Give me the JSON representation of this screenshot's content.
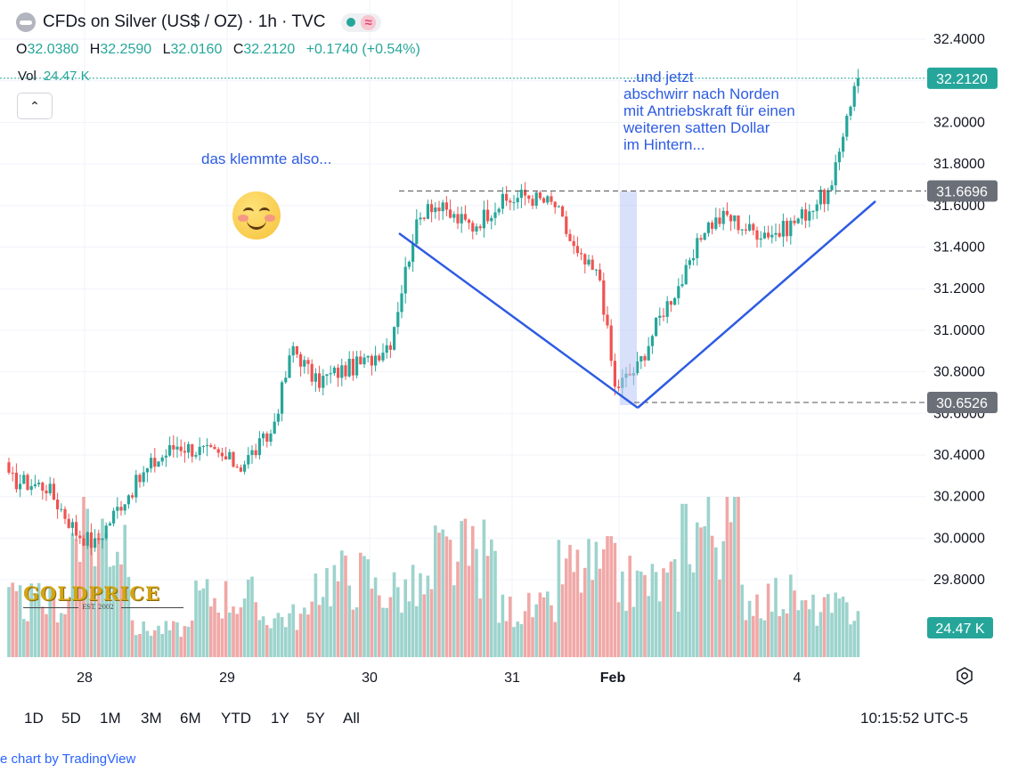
{
  "header": {
    "title": "CFDs on Silver (US$ / OZ) · 1h · TVC",
    "status_icon": "live-dot-icon",
    "indicator_icon": "wave-icon"
  },
  "ohlc": {
    "o_label": "O",
    "o": "32.0380",
    "h_label": "H",
    "h": "32.2590",
    "l_label": "L",
    "l": "32.0160",
    "c_label": "C",
    "c": "32.2120",
    "change": "+0.1740 (+0.54%)"
  },
  "volume": {
    "label": "Vol",
    "value": "24.47 K"
  },
  "collapse_glyph": "⌃",
  "annotations": {
    "left_text": "das klemmte also...",
    "right_lines": [
      "...und jetzt",
      "abschwirr nach Norden",
      "mit Antriebskraft für einen",
      "weiteren satten Dollar",
      "im Hintern..."
    ]
  },
  "watermark": {
    "brand": "GOLDPRICE",
    "est": "EST. 2002"
  },
  "timeframes": [
    "1D",
    "5D",
    "1M",
    "3M",
    "6M",
    "YTD",
    "1Y",
    "5Y",
    "All"
  ],
  "clock": "10:15:52 UTC-5",
  "footer": "e chart by TradingView",
  "colors": {
    "up": "#26a69a",
    "down": "#ef5350",
    "vol_up": "#9dd3cd",
    "vol_down": "#f0a8a6",
    "annotation": "#2d5be3",
    "grid": "#f0f3fa"
  },
  "chart_data": {
    "type": "candlestick",
    "title": "CFDs on Silver (US$ / OZ) · 1h · TVC",
    "ylim": [
      29.7,
      32.5
    ],
    "y_ticks": [
      "32.4000",
      "32.2000",
      "32.0000",
      "31.8000",
      "31.6000",
      "31.4000",
      "31.2000",
      "31.0000",
      "30.8000",
      "30.6000",
      "30.4000",
      "30.2000",
      "30.0000",
      "29.8000"
    ],
    "x_ticks": [
      "28",
      "29",
      "30",
      "31",
      "Feb",
      "4"
    ],
    "price_labels": [
      {
        "value": 32.212,
        "text": "32.2120",
        "kind": "last"
      },
      {
        "value": 31.6696,
        "text": "31.6696",
        "kind": "level"
      },
      {
        "value": 30.6526,
        "text": "30.6526",
        "kind": "level"
      }
    ],
    "volume_label": "24.47 K",
    "horizontal_levels": [
      31.6696,
      30.6526
    ],
    "trend_lines": [
      {
        "from": [
          "Jan 30 late",
          31.47
        ],
        "to": [
          "Feb 1 night",
          30.64
        ]
      },
      {
        "from": [
          "Feb 1 night",
          30.64
        ],
        "to": [
          "Feb 4 end",
          31.62
        ]
      }
    ],
    "highlight_span": [
      "Feb 1 20:00",
      "Feb 1 23:00"
    ],
    "anchors": [
      [
        0,
        30.28
      ],
      [
        10,
        30.25
      ],
      [
        18,
        30.03
      ],
      [
        23,
        29.97
      ],
      [
        30,
        30.17
      ],
      [
        38,
        30.35
      ],
      [
        45,
        30.45
      ],
      [
        55,
        30.4
      ],
      [
        62,
        30.35
      ],
      [
        70,
        30.5
      ],
      [
        76,
        30.92
      ],
      [
        82,
        30.75
      ],
      [
        88,
        30.8
      ],
      [
        96,
        30.85
      ],
      [
        102,
        30.95
      ],
      [
        108,
        31.45
      ],
      [
        112,
        31.62
      ],
      [
        118,
        31.55
      ],
      [
        124,
        31.5
      ],
      [
        130,
        31.6
      ],
      [
        138,
        31.65
      ],
      [
        146,
        31.6
      ],
      [
        152,
        31.35
      ],
      [
        158,
        31.25
      ],
      [
        162,
        30.72
      ],
      [
        168,
        30.82
      ],
      [
        175,
        31.1
      ],
      [
        182,
        31.3
      ],
      [
        186,
        31.5
      ],
      [
        192,
        31.55
      ],
      [
        198,
        31.48
      ],
      [
        206,
        31.47
      ],
      [
        212,
        31.55
      ],
      [
        216,
        31.62
      ],
      [
        220,
        31.67
      ],
      [
        224,
        32.05
      ],
      [
        227,
        32.212
      ]
    ],
    "volume_levels": [
      0.35,
      0.9,
      0.15,
      0.4,
      0.25,
      0.55,
      0.45,
      0.7,
      0.3,
      0.6,
      0.5,
      0.95,
      0.4,
      0.3
    ]
  }
}
